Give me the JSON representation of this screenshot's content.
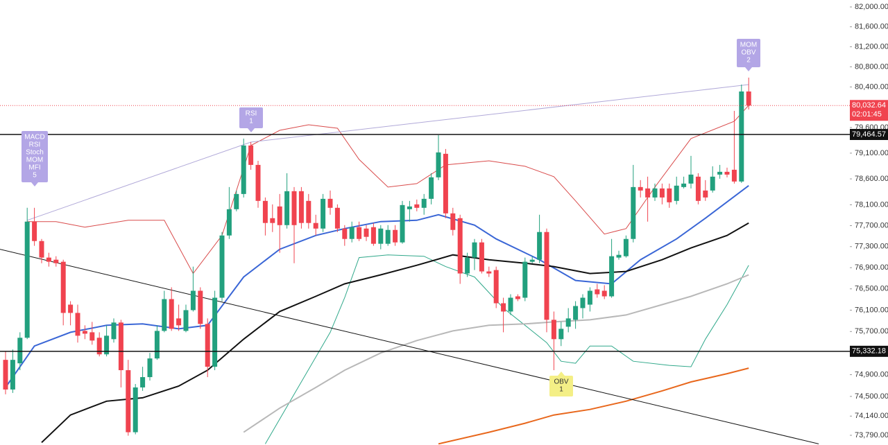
{
  "chart_data": {
    "type": "candlestick",
    "log_scale": true,
    "ylim": [
      73614,
      82140
    ],
    "yticks": [
      {
        "value": 82000,
        "label": "82,000.00"
      },
      {
        "value": 81600,
        "label": "81,600.00"
      },
      {
        "value": 81200,
        "label": "81,200.00"
      },
      {
        "value": 80800,
        "label": "80,800.00"
      },
      {
        "value": 80400,
        "label": "80,400.00"
      },
      {
        "value": 79600,
        "label": "79,600.00"
      },
      {
        "value": 79100,
        "label": "79,100.00"
      },
      {
        "value": 78600,
        "label": "78,600.00"
      },
      {
        "value": 78100,
        "label": "78,100.00"
      },
      {
        "value": 77700,
        "label": "77,700.00"
      },
      {
        "value": 77300,
        "label": "77,300.00"
      },
      {
        "value": 76900,
        "label": "76,900.00"
      },
      {
        "value": 76500,
        "label": "76,500.00"
      },
      {
        "value": 76100,
        "label": "76,100.00"
      },
      {
        "value": 75700,
        "label": "75,700.00"
      },
      {
        "value": 74900,
        "label": "74,900.00"
      },
      {
        "value": 74500,
        "label": "74,500.00"
      },
      {
        "value": 74140,
        "label": "74,140.00"
      },
      {
        "value": 73790,
        "label": "73,790.00"
      }
    ],
    "up_color": "#22a07e",
    "down_color": "#f0434f",
    "open": [
      75174,
      74627,
      75110,
      75584,
      77777,
      77406,
      77091,
      77051,
      77012,
      76203,
      76048,
      75712,
      75686,
      75584,
      75276,
      75558,
      75868,
      74983,
      73846,
      74665,
      74855,
      75200,
      75712,
      76307,
      75945,
      75712,
      76100,
      76464,
      75842,
      75046,
      76333,
      77512,
      78015,
      78308,
      79249,
      78871,
      78175,
      77843,
      78068,
      77710,
      78362,
      78362,
      78175,
      77751,
      77644,
      78215,
      78042,
      77644,
      77446,
      77671,
      77644,
      77671,
      77354,
      77354,
      77618,
      77380,
      78015,
      78108,
      78042,
      78215,
      78630,
      79087,
      77935,
      77843,
      76790,
      77091,
      77380,
      76829,
      76855,
      76229,
      76074,
      76359,
      76333,
      77012,
      77051,
      77578,
      75919,
      75558,
      75790,
      75919,
      76138,
      76203,
      76490,
      76464,
      76359,
      77091,
      77117,
      77446,
      78442,
      78415,
      78241,
      78415,
      78415,
      78175,
      78442,
      78509,
      78643,
      78375,
      78375,
      78683,
      78737,
      78777,
      78549,
      80310
    ],
    "high": [
      75328,
      75366,
      75686,
      78042,
      78042,
      77446,
      77183,
      77117,
      77051,
      76268,
      76203,
      75816,
      75880,
      75686,
      75816,
      75945,
      75919,
      75174,
      74728,
      75046,
      75302,
      75816,
      76464,
      76529,
      76203,
      76203,
      76920,
      76529,
      75945,
      76464,
      77578,
      78442,
      78375,
      79384,
      79316,
      78951,
      78241,
      78108,
      78308,
      78710,
      78442,
      78442,
      78308,
      77909,
      78308,
      78375,
      78108,
      77710,
      77777,
      77777,
      77710,
      77751,
      77710,
      77710,
      77710,
      78175,
      78175,
      78201,
      78308,
      78710,
      79451,
      79181,
      78042,
      77909,
      77183,
      77446,
      77446,
      76920,
      76920,
      76333,
      76398,
      76398,
      77091,
      77117,
      77909,
      77644,
      76074,
      75880,
      76138,
      76268,
      76398,
      76529,
      76594,
      76568,
      77446,
      77222,
      77512,
      78871,
      78576,
      78643,
      78509,
      78509,
      78509,
      78643,
      78643,
      79046,
      78710,
      78576,
      78844,
      78871,
      78817,
      79928,
      80447,
      80585
    ],
    "low": [
      74539,
      74564,
      74983,
      75558,
      77315,
      76985,
      76920,
      76920,
      75816,
      75816,
      75494,
      75558,
      75455,
      75238,
      75238,
      75494,
      74665,
      73783,
      73808,
      74602,
      74792,
      75174,
      75686,
      75712,
      75712,
      75686,
      76074,
      75751,
      74855,
      74983,
      76268,
      77446,
      77975,
      78241,
      78777,
      78042,
      77512,
      77578,
      77183,
      77644,
      76985,
      77644,
      77644,
      77512,
      77578,
      77909,
      77578,
      77315,
      77380,
      77406,
      77406,
      77315,
      77249,
      77315,
      77315,
      77354,
      77777,
      77975,
      77909,
      78108,
      78576,
      77843,
      77512,
      76594,
      76724,
      76855,
      76790,
      76724,
      76138,
      75686,
      76009,
      76268,
      76268,
      76985,
      76985,
      75686,
      74983,
      75430,
      75686,
      75751,
      75945,
      76074,
      76333,
      76307,
      76333,
      77051,
      77091,
      77380,
      78241,
      77777,
      78175,
      78108,
      78042,
      78108,
      78415,
      78415,
      78108,
      78175,
      78335,
      78603,
      78630,
      78509,
      78522,
      79955
    ],
    "close": [
      74627,
      75174,
      75584,
      77777,
      77406,
      77091,
      77012,
      76985,
      76048,
      76048,
      75622,
      75660,
      75532,
      75276,
      75622,
      75868,
      74983,
      73846,
      74665,
      74855,
      75200,
      75712,
      76307,
      75751,
      75816,
      76100,
      76464,
      75842,
      75046,
      76333,
      77512,
      78015,
      78308,
      79249,
      78871,
      78175,
      77751,
      77751,
      77710,
      78362,
      77710,
      77751,
      77751,
      77644,
      78215,
      78042,
      77644,
      77446,
      77671,
      77446,
      77486,
      77354,
      77644,
      77618,
      77380,
      78095,
      78068,
      78042,
      78215,
      78630,
      79114,
      77935,
      77618,
      76790,
      77091,
      77380,
      76829,
      76790,
      76229,
      76074,
      76333,
      76307,
      77012,
      77051,
      77578,
      75919,
      75558,
      75751,
      75945,
      76177,
      76333,
      76464,
      76398,
      76359,
      77117,
      77143,
      77446,
      78442,
      78375,
      78241,
      78415,
      78241,
      78148,
      78469,
      78509,
      78683,
      78175,
      78241,
      78643,
      78737,
      78683,
      78549,
      80310,
      80032.64
    ],
    "lines": [
      {
        "color": "#d94a4a",
        "width": 1,
        "x": [
          3,
          7,
          11,
          17,
          22,
          26,
          30,
          34,
          38,
          42,
          46,
          49,
          53,
          57,
          61,
          67,
          72,
          76,
          79,
          83,
          86,
          90,
          95,
          101,
          103
        ],
        "values": [
          77777,
          77777,
          77671,
          77803,
          77803,
          76790,
          77512,
          79249,
          79546,
          79655,
          79587,
          78978,
          78442,
          78509,
          78871,
          78951,
          78844,
          78643,
          78175,
          77539,
          77644,
          78442,
          79384,
          79723,
          80037
        ]
      },
      {
        "color": "#2fa88a",
        "width": 1,
        "x": [
          36,
          40,
          45,
          47,
          49,
          53,
          58,
          61,
          65,
          69,
          72,
          75,
          77,
          79,
          81,
          84,
          87,
          92,
          95,
          97,
          100,
          103
        ],
        "values": [
          73634,
          74539,
          75686,
          76333,
          77091,
          77143,
          77117,
          76920,
          76724,
          76138,
          75816,
          75494,
          75148,
          75110,
          75430,
          75430,
          75148,
          75072,
          75046,
          75558,
          76203,
          76946
        ]
      },
      {
        "color": "#b8b8b8",
        "width": 2,
        "x": [
          33,
          38,
          43,
          47,
          52,
          57,
          62,
          67,
          72,
          76,
          81,
          86,
          91,
          95,
          100,
          103
        ],
        "values": [
          73846,
          74286,
          74665,
          74983,
          75302,
          75532,
          75712,
          75816,
          75842,
          75880,
          75919,
          76009,
          76203,
          76359,
          76594,
          76764
        ]
      },
      {
        "color": "#e8671c",
        "width": 2,
        "x": [
          60,
          67,
          72,
          76,
          81,
          86,
          91,
          95,
          100,
          103
        ],
        "values": [
          73634,
          73846,
          74010,
          74160,
          74261,
          74412,
          74602,
          74767,
          74919,
          75021
        ]
      },
      {
        "color": "#3a66d6",
        "width": 2,
        "x": [
          0,
          4,
          9,
          14,
          19,
          24,
          28,
          33,
          38,
          43,
          47,
          52,
          57,
          60,
          65,
          68,
          74,
          79,
          84,
          88,
          93,
          97,
          103
        ],
        "values": [
          74665,
          75430,
          75686,
          75816,
          75842,
          75751,
          75816,
          76724,
          77249,
          77512,
          77644,
          77777,
          77803,
          77909,
          77710,
          77446,
          77051,
          76659,
          76594,
          77051,
          77446,
          77843,
          78469
        ]
      },
      {
        "color": "#111111",
        "width": 2,
        "x": [
          5,
          9,
          14,
          19,
          24,
          28,
          33,
          38,
          43,
          47,
          52,
          57,
          62,
          67,
          72,
          76,
          81,
          86,
          91,
          95,
          100,
          103
        ],
        "values": [
          73659,
          74160,
          74412,
          74475,
          74690,
          74983,
          75558,
          76074,
          76359,
          76594,
          76764,
          76946,
          77143,
          77051,
          76985,
          76920,
          76790,
          76829,
          77051,
          77275,
          77512,
          77751
        ]
      },
      {
        "color": "#111111",
        "width": 1,
        "x": [
          -0.8,
          112.7
        ],
        "values": [
          77249,
          73634
        ]
      },
      {
        "color": "#b0a8d8",
        "width": 1,
        "x": [
          3,
          34,
          103
        ],
        "values": [
          77803,
          79316,
          80447
        ]
      }
    ],
    "levels": [
      {
        "value": 79464.57,
        "label": "79,464.57"
      },
      {
        "value": 75332.18,
        "label": "75,332.18"
      }
    ],
    "last_price": {
      "value": 80032.64,
      "label": "80,032.64",
      "timer": "02:01:45",
      "color": "#f0434f"
    },
    "annotations": [
      {
        "lines": [
          "MACD",
          "RSI",
          "Stoch",
          "MOM",
          "MFI",
          "5"
        ],
        "color": "#b3a6e6"
      },
      {
        "lines": [
          "RSI",
          "1"
        ],
        "color": "#b3a6e6"
      },
      {
        "lines": [
          "MOM",
          "OBV",
          "2"
        ],
        "color": "#b3a6e6"
      },
      {
        "lines": [
          "OBV",
          "1"
        ],
        "color": "#f4ef86"
      }
    ]
  }
}
